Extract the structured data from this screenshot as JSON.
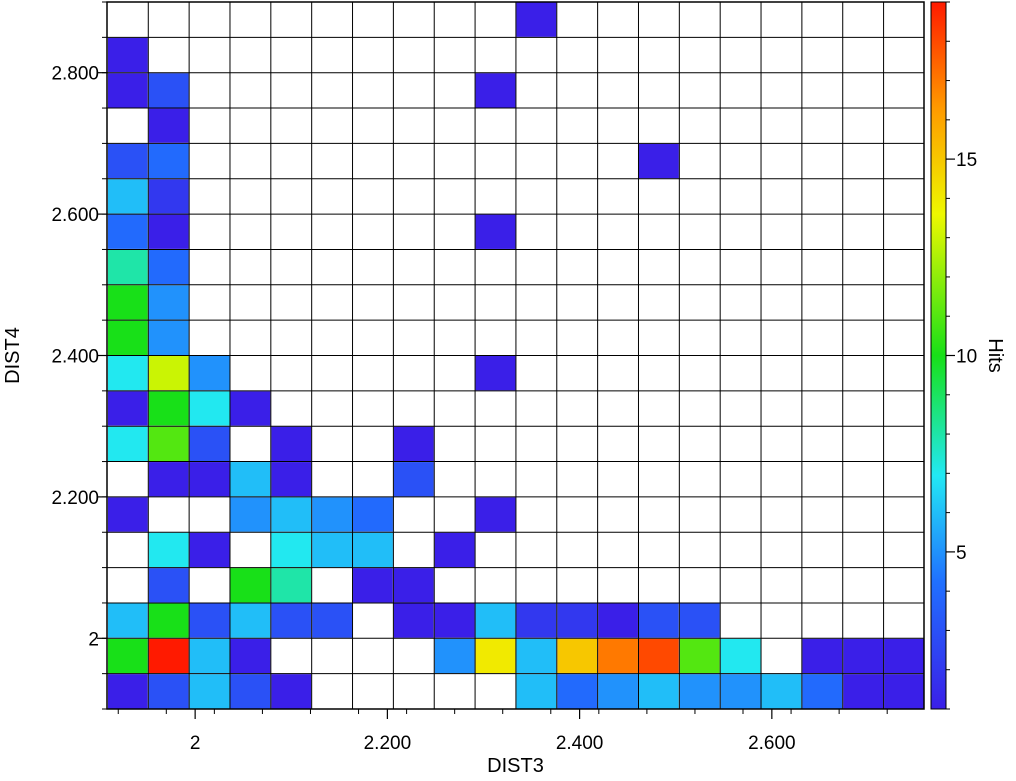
{
  "chart_data": {
    "type": "heatmap",
    "xlabel": "DIST3",
    "ylabel": "DIST4",
    "colorbar_label": "Hits",
    "grid": true,
    "x_ticks": [
      {
        "value": 2.0,
        "label": "2"
      },
      {
        "value": 2.2,
        "label": "2.200"
      },
      {
        "value": 2.4,
        "label": "2.400"
      },
      {
        "value": 2.6,
        "label": "2.600"
      }
    ],
    "y_ticks": [
      {
        "value": 2.0,
        "label": "2"
      },
      {
        "value": 2.2,
        "label": "2.200"
      },
      {
        "value": 2.4,
        "label": "2.400"
      },
      {
        "value": 2.6,
        "label": "2.600"
      },
      {
        "value": 2.8,
        "label": "2.800"
      }
    ],
    "colorbar_ticks": [
      {
        "value": 5,
        "label": "5"
      },
      {
        "value": 10,
        "label": "10"
      },
      {
        "value": 15,
        "label": "15"
      }
    ],
    "value_range": [
      1,
      19
    ],
    "x_range": [
      1.9083,
      2.7583
    ],
    "y_range": [
      1.9,
      2.9
    ],
    "cell_width": 0.0425,
    "cell_height": 0.05,
    "x_bins": [
      1.93,
      1.9725,
      2.015,
      2.0575,
      2.1,
      2.1425,
      2.185,
      2.2275,
      2.27,
      2.3125,
      2.355,
      2.3975,
      2.44,
      2.4825,
      2.525,
      2.5675,
      2.61,
      2.6525,
      2.695,
      2.7375
    ],
    "y_bins": [
      2.875,
      2.825,
      2.775,
      2.725,
      2.675,
      2.625,
      2.575,
      2.525,
      2.475,
      2.425,
      2.375,
      2.325,
      2.275,
      2.225,
      2.175,
      2.125,
      2.075,
      2.025,
      1.975,
      1.925
    ],
    "values": [
      [
        0,
        0,
        0,
        0,
        0,
        0,
        0,
        0,
        0,
        0,
        1,
        0,
        0,
        0,
        0,
        0,
        0,
        0,
        0,
        0
      ],
      [
        1,
        0,
        0,
        0,
        0,
        0,
        0,
        0,
        0,
        0,
        0,
        0,
        0,
        0,
        0,
        0,
        0,
        0,
        0,
        0
      ],
      [
        1,
        3,
        0,
        0,
        0,
        0,
        0,
        0,
        0,
        1,
        0,
        0,
        0,
        0,
        0,
        0,
        0,
        0,
        0,
        0
      ],
      [
        0,
        1,
        0,
        0,
        0,
        0,
        0,
        0,
        0,
        0,
        0,
        0,
        0,
        0,
        0,
        0,
        0,
        0,
        0,
        0
      ],
      [
        3,
        4,
        0,
        0,
        0,
        0,
        0,
        0,
        0,
        0,
        0,
        0,
        0,
        1,
        0,
        0,
        0,
        0,
        0,
        0
      ],
      [
        6,
        2,
        0,
        0,
        0,
        0,
        0,
        0,
        0,
        0,
        0,
        0,
        0,
        0,
        0,
        0,
        0,
        0,
        0,
        0
      ],
      [
        4,
        1,
        0,
        0,
        0,
        0,
        0,
        0,
        0,
        1,
        0,
        0,
        0,
        0,
        0,
        0,
        0,
        0,
        0,
        0
      ],
      [
        8,
        4,
        0,
        0,
        0,
        0,
        0,
        0,
        0,
        0,
        0,
        0,
        0,
        0,
        0,
        0,
        0,
        0,
        0,
        0
      ],
      [
        10,
        5,
        0,
        0,
        0,
        0,
        0,
        0,
        0,
        0,
        0,
        0,
        0,
        0,
        0,
        0,
        0,
        0,
        0,
        0
      ],
      [
        10,
        5,
        0,
        0,
        0,
        0,
        0,
        0,
        0,
        0,
        0,
        0,
        0,
        0,
        0,
        0,
        0,
        0,
        0,
        0
      ],
      [
        7,
        13,
        5,
        0,
        0,
        0,
        0,
        0,
        0,
        1,
        0,
        0,
        0,
        0,
        0,
        0,
        0,
        0,
        0,
        0
      ],
      [
        1,
        10,
        7,
        1,
        0,
        0,
        0,
        0,
        0,
        0,
        0,
        0,
        0,
        0,
        0,
        0,
        0,
        0,
        0,
        0
      ],
      [
        7,
        11,
        3,
        0,
        1,
        0,
        0,
        1,
        0,
        0,
        0,
        0,
        0,
        0,
        0,
        0,
        0,
        0,
        0,
        0
      ],
      [
        0,
        1,
        1,
        6,
        1,
        0,
        0,
        3,
        0,
        0,
        0,
        0,
        0,
        0,
        0,
        0,
        0,
        0,
        0,
        0
      ],
      [
        1,
        0,
        0,
        5,
        6,
        5,
        4,
        0,
        0,
        1,
        0,
        0,
        0,
        0,
        0,
        0,
        0,
        0,
        0,
        0
      ],
      [
        0,
        7,
        1,
        0,
        7,
        6,
        6,
        0,
        1,
        0,
        0,
        0,
        0,
        0,
        0,
        0,
        0,
        0,
        0,
        0
      ],
      [
        0,
        3,
        0,
        10,
        8,
        0,
        1,
        1,
        0,
        0,
        0,
        0,
        0,
        0,
        0,
        0,
        0,
        0,
        0,
        0
      ],
      [
        6,
        10,
        3,
        6,
        3,
        3,
        0,
        1,
        1,
        6,
        2,
        2,
        1,
        3,
        3,
        0,
        0,
        0,
        0,
        0
      ],
      [
        10,
        19,
        6,
        1,
        0,
        0,
        0,
        0,
        5,
        14,
        6,
        15,
        17,
        18,
        11,
        7,
        0,
        1,
        1,
        1
      ],
      [
        1,
        3,
        6,
        3,
        1,
        0,
        0,
        0,
        0,
        0,
        6,
        4,
        5,
        6,
        5,
        5,
        6,
        4,
        1,
        1
      ]
    ]
  }
}
